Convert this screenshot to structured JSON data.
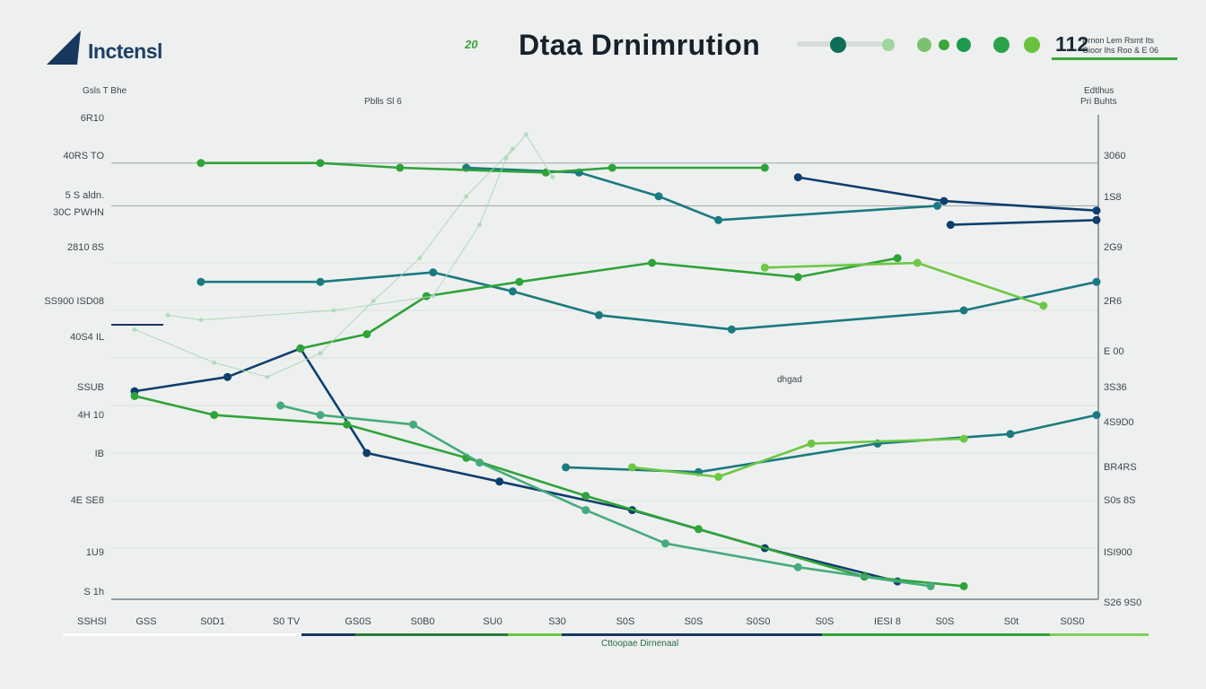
{
  "header": {
    "logo_text": "Inctensl",
    "title": "Dtaa Drnimrution",
    "title_badge": "20",
    "legend_number": "112",
    "legend_label_1": "Drnon Lem Rsmt Its",
    "legend_label_2": "Gioor Ihs Roo & E 06",
    "legend_dots": [
      "#0d6e5a",
      "#9fd69f",
      "#7cc16e",
      "#3aa83a",
      "#1f9a4e",
      "#2ca24a",
      "#68c23c"
    ]
  },
  "captions": {
    "left_axis_title": "Gsls T Bhe",
    "center_caption": "Pblls Sl 6",
    "right_axis_title": "Edtlhus",
    "right_axis_sub": "Pri Buhts",
    "plot_note": "dhgad",
    "x_axis_caption": "Cttoopae Dirnenaal"
  },
  "axes": {
    "left_ticks": [
      "6R10",
      "40RS TO",
      "5 S aldn.",
      "30C PWHN",
      "2810 8S",
      "SS900 ISD08",
      "40S4 IL",
      "SSUB",
      "4H 10",
      "IB",
      "4E SE8",
      "1U9",
      "S 1h"
    ],
    "left_corner": "SSHSl",
    "right_ticks": [
      "3060",
      "1S8",
      "2G9",
      "2R6",
      "E 00",
      "3S36",
      "4S9D0",
      "BR4RS",
      "S0s 8S",
      "ISI900",
      "S26 9S0"
    ],
    "x_ticks": [
      "GSS",
      "S0D1",
      "S0 TV",
      "GS0S",
      "S0B0",
      "SU0",
      "S30",
      "S0S",
      "S0S",
      "S0S0",
      "S0S",
      "IESI 8",
      "S0S",
      "S0t",
      "S0S0"
    ]
  },
  "colors": {
    "navy": "#0f3e6e",
    "teal": "#1b7a80",
    "green": "#2fa33a",
    "lime": "#6cc843",
    "sea": "#45ab7e",
    "ghost": "#a7d8b6"
  },
  "chart_data": {
    "type": "line",
    "title": "Dtaa Drnimrution",
    "xlabel": "",
    "ylabel": "",
    "x": [
      0,
      1,
      2,
      3,
      4,
      5,
      6,
      7,
      8,
      9,
      10,
      11,
      12,
      13,
      14
    ],
    "ylim": [
      0,
      100
    ],
    "grid": true,
    "series": [
      {
        "color": "#0f3e6e",
        "points": [
          [
            0,
            43
          ],
          [
            1.4,
            46
          ],
          [
            2.5,
            52
          ],
          [
            3.5,
            30
          ],
          [
            5.5,
            24
          ],
          [
            7.5,
            18
          ],
          [
            9.5,
            10
          ],
          [
            11.5,
            3
          ]
        ]
      },
      {
        "color": "#0f3e6e",
        "points": [
          [
            10,
            88
          ],
          [
            12.2,
            83
          ],
          [
            14.5,
            81
          ]
        ]
      },
      {
        "color": "#0f3e6e",
        "points": [
          [
            12.3,
            78
          ],
          [
            14.5,
            79
          ]
        ]
      },
      {
        "color": "#1b7a80",
        "points": [
          [
            1.0,
            66
          ],
          [
            2.8,
            66
          ],
          [
            4.5,
            68
          ],
          [
            5.7,
            64
          ],
          [
            7.0,
            59
          ],
          [
            9.0,
            56
          ],
          [
            12.5,
            60
          ],
          [
            14.5,
            66
          ]
        ]
      },
      {
        "color": "#1b7a80",
        "points": [
          [
            5.0,
            90
          ],
          [
            6.7,
            89
          ],
          [
            7.9,
            84
          ],
          [
            8.8,
            79
          ],
          [
            12.1,
            82
          ]
        ]
      },
      {
        "color": "#1b7a80",
        "points": [
          [
            6.5,
            27
          ],
          [
            8.5,
            26
          ],
          [
            11.2,
            32
          ],
          [
            13.2,
            34
          ],
          [
            14.5,
            38
          ]
        ]
      },
      {
        "color": "#2fa33a",
        "points": [
          [
            1.0,
            91
          ],
          [
            2.8,
            91
          ],
          [
            4.0,
            90
          ],
          [
            6.2,
            89
          ],
          [
            7.2,
            90
          ],
          [
            9.5,
            90
          ]
        ]
      },
      {
        "color": "#2fa33a",
        "points": [
          [
            2.5,
            52
          ],
          [
            3.5,
            55
          ],
          [
            4.4,
            63
          ],
          [
            5.8,
            66
          ],
          [
            7.8,
            70
          ],
          [
            10.0,
            67
          ],
          [
            11.5,
            71
          ]
        ]
      },
      {
        "color": "#2fa33a",
        "points": [
          [
            0,
            42
          ],
          [
            1.2,
            38
          ],
          [
            3.2,
            36
          ],
          [
            5.0,
            29
          ],
          [
            6.8,
            21
          ],
          [
            8.5,
            14
          ],
          [
            11.0,
            4
          ],
          [
            12.5,
            2
          ]
        ]
      },
      {
        "color": "#6cc843",
        "points": [
          [
            7.5,
            27
          ],
          [
            8.8,
            25
          ],
          [
            10.2,
            32
          ],
          [
            12.5,
            33
          ]
        ]
      },
      {
        "color": "#6cc843",
        "points": [
          [
            9.5,
            69
          ],
          [
            11.8,
            70
          ],
          [
            13.7,
            61
          ]
        ]
      },
      {
        "color": "#45ab7e",
        "points": [
          [
            2.2,
            40
          ],
          [
            2.8,
            38
          ],
          [
            4.2,
            36
          ],
          [
            5.2,
            28
          ],
          [
            6.8,
            18
          ],
          [
            8.0,
            11
          ],
          [
            10.0,
            6
          ],
          [
            12.0,
            2
          ]
        ]
      },
      {
        "color": "#a7d8b6",
        "points": [
          [
            0.5,
            59
          ],
          [
            1.0,
            58
          ],
          [
            3.0,
            60
          ],
          [
            4.5,
            63
          ],
          [
            5.2,
            78
          ],
          [
            5.6,
            92
          ],
          [
            5.9,
            97
          ],
          [
            6.3,
            88
          ]
        ]
      },
      {
        "color": "#a7d8b6",
        "points": [
          [
            0,
            56
          ],
          [
            1.2,
            49
          ],
          [
            2.0,
            46
          ],
          [
            2.8,
            51
          ],
          [
            3.6,
            62
          ],
          [
            4.3,
            71
          ],
          [
            5.0,
            84
          ],
          [
            5.7,
            94
          ]
        ]
      }
    ]
  }
}
